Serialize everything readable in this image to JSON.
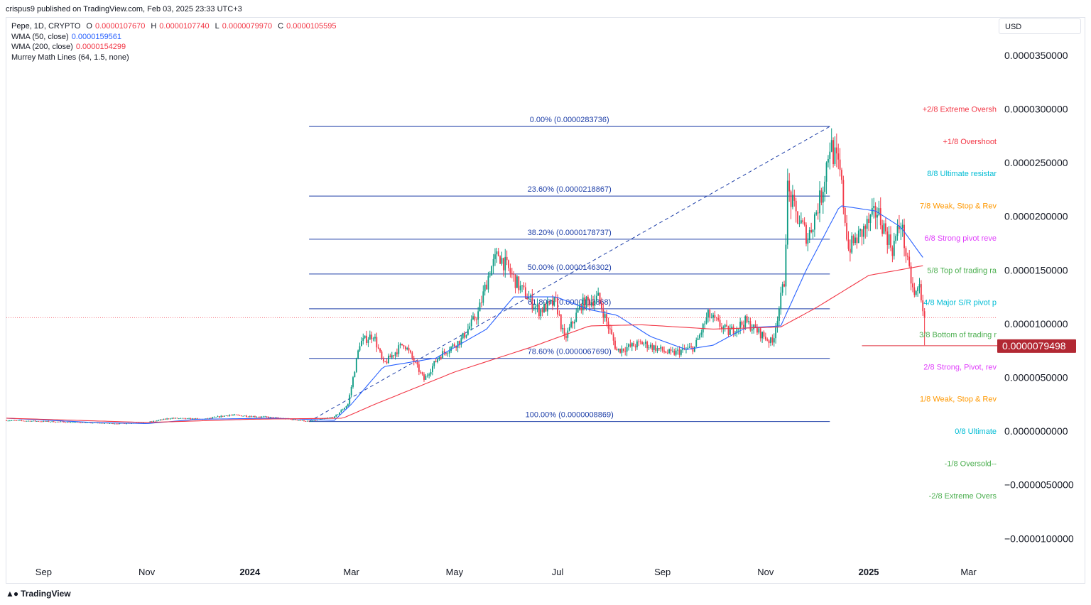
{
  "header": {
    "text": "crispus9 published on TradingView.com, Feb 03, 2025 23:33 UTC+3"
  },
  "legend": {
    "symbol": "Pepe, 1D, CRYPTO",
    "o_label": "O",
    "o": "0.0000107670",
    "h_label": "H",
    "h": "0.0000107740",
    "l_label": "L",
    "l": "0.0000079970",
    "c_label": "C",
    "c": "0.0000105595",
    "wma50_label": "WMA (50, close)",
    "wma50": "0.0000159561",
    "wma200_label": "WMA (200, close)",
    "wma200": "0.0000154299",
    "murrey_label": "Murrey Math Lines (64, 1.5, none)"
  },
  "currency": "USD",
  "footer": {
    "brand": "TradingView"
  },
  "colors": {
    "up": "#089981",
    "down": "#f23645",
    "wma50": "#2962ff",
    "wma200": "#f23645",
    "fib": "#1e3fa8"
  },
  "chart_data": {
    "type": "candlestick",
    "y_ticks": [
      "0.0000350000",
      "0.0000300000",
      "0.0000250000",
      "0.0000200000",
      "0.0000150000",
      "0.0000100000",
      "0.0000050000",
      "0.0000000000",
      "−0.0000050000",
      "−0.0000100000"
    ],
    "y_tick_values": [
      3.5e-05,
      3e-05,
      2.5e-05,
      2e-05,
      1.5e-05,
      1e-05,
      5e-06,
      0,
      -5e-06,
      -1e-05
    ],
    "ylim": [
      -1.21e-05,
      3.85e-05
    ],
    "x_ticks": [
      {
        "label": "Sep",
        "date": "2023-09-01",
        "bold": false
      },
      {
        "label": "Nov",
        "date": "2023-11-01",
        "bold": false
      },
      {
        "label": "2024",
        "date": "2024-01-01",
        "bold": true
      },
      {
        "label": "Mar",
        "date": "2024-03-01",
        "bold": false
      },
      {
        "label": "May",
        "date": "2024-05-01",
        "bold": false
      },
      {
        "label": "Jul",
        "date": "2024-07-01",
        "bold": false
      },
      {
        "label": "Sep",
        "date": "2024-09-01",
        "bold": false
      },
      {
        "label": "Nov",
        "date": "2024-11-01",
        "bold": false
      },
      {
        "label": "2025",
        "date": "2025-01-01",
        "bold": true
      },
      {
        "label": "Mar",
        "date": "2025-03-01",
        "bold": false
      }
    ],
    "xlim": [
      "2023-08-10",
      "2025-03-18"
    ],
    "last_price": {
      "label": "0.0000079498",
      "value": 7.9498e-06,
      "color": "#b22833"
    },
    "current_price": 1.05595e-05,
    "fibonacci": {
      "start_date": "2024-02-05",
      "end_date": "2024-12-09",
      "trend_from": {
        "date": "2024-02-05",
        "value": 8.869e-07
      },
      "trend_to": {
        "date": "2024-12-09",
        "value": 2.83736e-05
      },
      "levels": [
        {
          "label": "0.00% (0.0000283736)",
          "value": 2.83736e-05
        },
        {
          "label": "23.60% (0.0000218867)",
          "value": 2.18867e-05
        },
        {
          "label": "38.20% (0.0000178737)",
          "value": 1.78737e-05
        },
        {
          "label": "50.00% (0.0000146302)",
          "value": 1.46302e-05
        },
        {
          "label": "61.80% (0.0000113868)",
          "value": 1.13868e-05
        },
        {
          "label": "78.60% (0.0000067690)",
          "value": 6.769e-06
        },
        {
          "label": "100.00% (0.0000008869)",
          "value": 8.869e-07
        }
      ]
    },
    "murrey_lines": [
      {
        "label": "+2/8 Extreme Oversh",
        "value": 3e-05,
        "color": "#f23645"
      },
      {
        "label": "+1/8 Overshoot",
        "value": 2.7e-05,
        "color": "#f23645"
      },
      {
        "label": "8/8 Ultimate resistar",
        "value": 2.4e-05,
        "color": "#00bcd4"
      },
      {
        "label": "7/8 Weak, Stop & Rev",
        "value": 2.1e-05,
        "color": "#ff9800"
      },
      {
        "label": "6/8 Strong pivot reve",
        "value": 1.8e-05,
        "color": "#e040fb"
      },
      {
        "label": "5/8 Top of trading ra",
        "value": 1.5e-05,
        "color": "#4caf50"
      },
      {
        "label": "4/8 Major S/R pivot p",
        "value": 1.2e-05,
        "color": "#00bcd4"
      },
      {
        "label": "3/8 Bottom of trading r",
        "value": 9e-06,
        "color": "#4caf50"
      },
      {
        "label": "2/8 Strong, Pivot, rev",
        "value": 6e-06,
        "color": "#e040fb"
      },
      {
        "label": "1/8 Weak, Stop & Rev",
        "value": 3e-06,
        "color": "#ff9800"
      },
      {
        "label": "0/8 Ultimate",
        "value": 0,
        "color": "#00bcd4"
      },
      {
        "label": "-1/8 Oversold--",
        "value": -3e-06,
        "color": "#4caf50"
      },
      {
        "label": "-2/8 Extreme Overs",
        "value": -6e-06,
        "color": "#4caf50"
      }
    ],
    "price_path": [
      [
        "2023-08-10",
        1e-06
      ],
      [
        "2023-09-01",
        9e-07
      ],
      [
        "2023-10-15",
        7e-07
      ],
      [
        "2023-11-01",
        8e-07
      ],
      [
        "2023-11-15",
        1.2e-06
      ],
      [
        "2023-12-05",
        1.1e-06
      ],
      [
        "2023-12-20",
        1.5e-06
      ],
      [
        "2024-01-10",
        1.3e-06
      ],
      [
        "2024-01-25",
        1.1e-06
      ],
      [
        "2024-02-05",
        9e-07
      ],
      [
        "2024-02-20",
        1.3e-06
      ],
      [
        "2024-02-28",
        2.5e-06
      ],
      [
        "2024-03-06",
        8.2e-06
      ],
      [
        "2024-03-14",
        9e-06
      ],
      [
        "2024-03-20",
        6.2e-06
      ],
      [
        "2024-04-01",
        8.2e-06
      ],
      [
        "2024-04-13",
        4.8e-06
      ],
      [
        "2024-04-22",
        7e-06
      ],
      [
        "2024-05-05",
        8.5e-06
      ],
      [
        "2024-05-15",
        1.1e-05
      ],
      [
        "2024-05-22",
        1.5e-05
      ],
      [
        "2024-05-27",
        1.65e-05
      ],
      [
        "2024-06-08",
        1.35e-05
      ],
      [
        "2024-06-20",
        1.12e-05
      ],
      [
        "2024-06-30",
        1.2e-05
      ],
      [
        "2024-07-05",
        8.5e-06
      ],
      [
        "2024-07-15",
        1.18e-05
      ],
      [
        "2024-07-25",
        1.24e-05
      ],
      [
        "2024-08-05",
        7.5e-06
      ],
      [
        "2024-08-20",
        8.2e-06
      ],
      [
        "2024-09-06",
        7.2e-06
      ],
      [
        "2024-09-20",
        7.8e-06
      ],
      [
        "2024-09-28",
        1.08e-05
      ],
      [
        "2024-10-10",
        9.2e-06
      ],
      [
        "2024-10-20",
        1.02e-05
      ],
      [
        "2024-11-05",
        8.2e-06
      ],
      [
        "2024-11-12",
        1.4e-05
      ],
      [
        "2024-11-14",
        2.25e-05
      ],
      [
        "2024-11-18",
        2.05e-05
      ],
      [
        "2024-11-26",
        1.8e-05
      ],
      [
        "2024-12-04",
        2.2e-05
      ],
      [
        "2024-12-09",
        2.68e-05
      ],
      [
        "2024-12-15",
        2.4e-05
      ],
      [
        "2024-12-20",
        1.7e-05
      ],
      [
        "2024-12-28",
        1.85e-05
      ],
      [
        "2025-01-06",
        2.05e-05
      ],
      [
        "2025-01-15",
        1.7e-05
      ],
      [
        "2025-01-20",
        1.95e-05
      ],
      [
        "2025-01-24",
        1.55e-05
      ],
      [
        "2025-01-28",
        1.25e-05
      ],
      [
        "2025-01-31",
        1.35e-05
      ],
      [
        "2025-02-03",
        1.05595e-05
      ]
    ],
    "wma50_path": [
      [
        "2023-08-10",
        1.2e-06
      ],
      [
        "2023-10-01",
        8e-07
      ],
      [
        "2023-11-01",
        7e-07
      ],
      [
        "2023-12-01",
        1.1e-06
      ],
      [
        "2024-01-15",
        1.2e-06
      ],
      [
        "2024-02-20",
        1e-06
      ],
      [
        "2024-03-01",
        2.5e-06
      ],
      [
        "2024-03-20",
        6e-06
      ],
      [
        "2024-04-20",
        6.8e-06
      ],
      [
        "2024-05-20",
        9.5e-06
      ],
      [
        "2024-06-05",
        1.25e-05
      ],
      [
        "2024-06-30",
        1.25e-05
      ],
      [
        "2024-07-20",
        1.13e-05
      ],
      [
        "2024-08-05",
        1.08e-05
      ],
      [
        "2024-08-25",
        8.8e-06
      ],
      [
        "2024-09-15",
        7.6e-06
      ],
      [
        "2024-10-01",
        8e-06
      ],
      [
        "2024-10-20",
        9.6e-06
      ],
      [
        "2024-11-10",
        9.8e-06
      ],
      [
        "2024-11-25",
        1.5e-05
      ],
      [
        "2024-12-15",
        2.1e-05
      ],
      [
        "2025-01-05",
        2.05e-05
      ],
      [
        "2025-01-20",
        1.9e-05
      ],
      [
        "2025-02-03",
        1.59561e-05
      ]
    ],
    "wma200_path": [
      [
        "2023-08-10",
        1.2e-06
      ],
      [
        "2023-11-01",
        8e-07
      ],
      [
        "2024-01-01",
        1.1e-06
      ],
      [
        "2024-02-25",
        1.2e-06
      ],
      [
        "2024-03-15",
        2.5e-06
      ],
      [
        "2024-05-01",
        5.5e-06
      ],
      [
        "2024-06-15",
        7.8e-06
      ],
      [
        "2024-07-20",
        9.8e-06
      ],
      [
        "2024-08-20",
        9.9e-06
      ],
      [
        "2024-10-01",
        9.5e-06
      ],
      [
        "2024-11-10",
        9.7e-06
      ],
      [
        "2024-12-01",
        1.15e-05
      ],
      [
        "2025-01-01",
        1.45e-05
      ],
      [
        "2025-02-03",
        1.54299e-05
      ]
    ]
  }
}
